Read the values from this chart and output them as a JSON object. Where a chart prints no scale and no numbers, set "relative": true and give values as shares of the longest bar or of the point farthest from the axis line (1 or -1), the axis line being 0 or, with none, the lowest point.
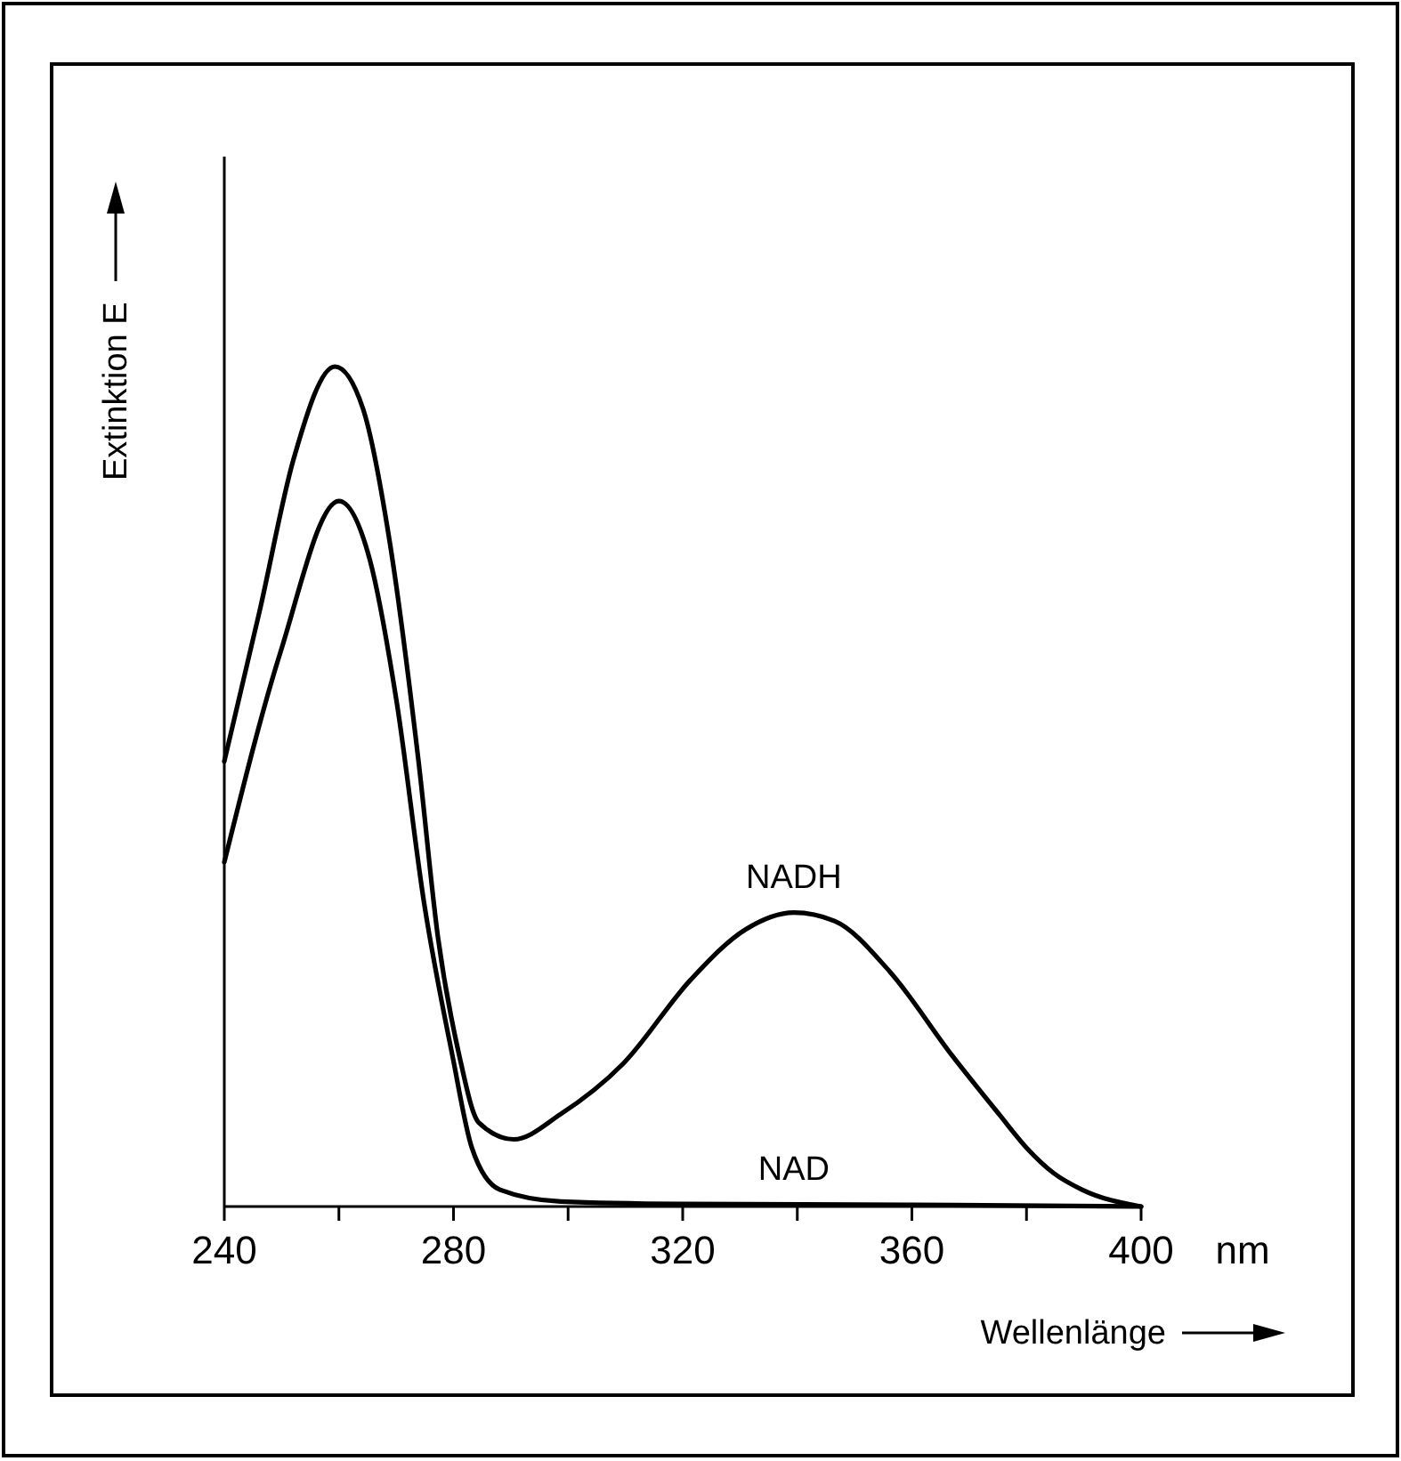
{
  "chart_data": {
    "type": "line",
    "relative": true,
    "xlabel": "Wellenlänge",
    "ylabel": "Extinktion E",
    "annotations": [
      "nm"
    ],
    "xlim": [
      240,
      400
    ],
    "xticks": [
      240,
      {
        "value": 260,
        "label": null
      },
      280,
      {
        "value": 300,
        "label": null
      },
      320,
      {
        "value": 340,
        "label": null
      },
      360,
      {
        "value": 380,
        "label": null
      },
      400
    ],
    "marker": "none",
    "line_style": "solid",
    "grid": false,
    "series": [
      {
        "name": "NADH",
        "color": "#000000",
        "x": [
          240,
          246.2,
          252.1,
          259.3,
          264.2,
          268.9,
          273.9,
          277.3,
          281,
          284.4,
          290.5,
          298.7,
          309.6,
          321.4,
          331,
          339.4,
          346.5,
          356.1,
          367,
          375.2,
          380,
          384.7,
          389.7,
          400
        ],
        "values": [
          0.53,
          0.71,
          0.89,
          1.0,
          0.95,
          0.79,
          0.53,
          0.32,
          0.18,
          0.1,
          0.08,
          0.11,
          0.17,
          0.27,
          0.33,
          0.35,
          0.34,
          0.28,
          0.18,
          0.11,
          0.07,
          0.04,
          0.02,
          0
        ]
      },
      {
        "name": "NAD",
        "color": "#000000",
        "x": [
          240,
          249.8,
          260,
          265.4,
          270.1,
          274.9,
          279.8,
          283.2,
          288.1,
          298.7,
          320,
          360,
          400
        ],
        "values": [
          0.41,
          0.66,
          0.84,
          0.77,
          0.6,
          0.36,
          0.18,
          0.07,
          0.02,
          0.006,
          0.003,
          0.002,
          0
        ]
      }
    ]
  }
}
